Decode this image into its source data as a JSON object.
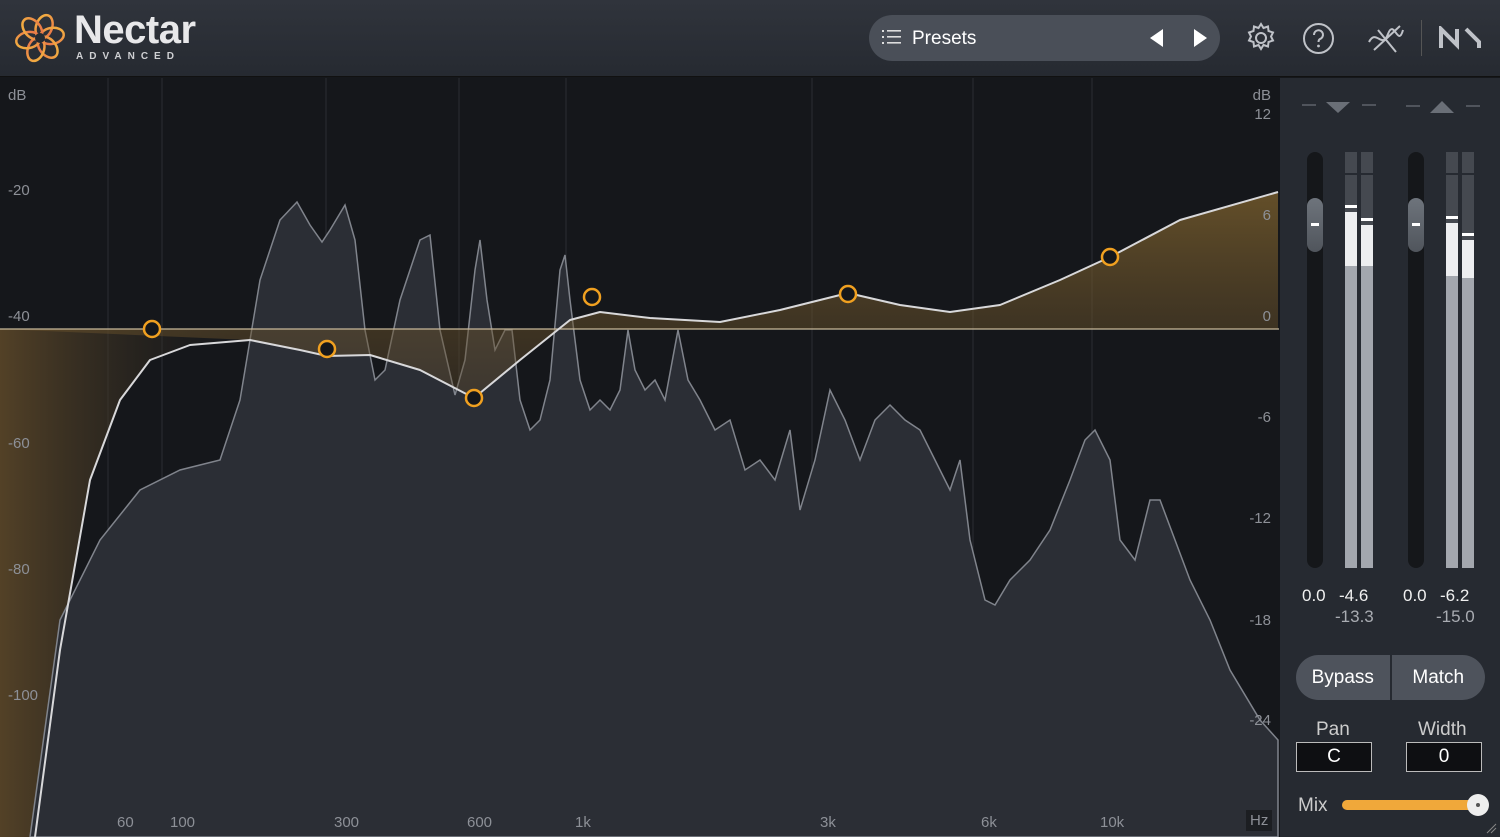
{
  "header": {
    "title": "Nectar",
    "subtitle": "ADVANCED",
    "presets_label": "Presets"
  },
  "display": {
    "left_axis_unit": "dB",
    "left_axis_ticks": [
      "-20",
      "-40",
      "-60",
      "-80",
      "-100"
    ],
    "right_axis_unit": "dB",
    "right_axis_ticks": [
      "12",
      "6",
      "0",
      "-6",
      "-12",
      "-18",
      "-24"
    ],
    "freq_ticks": [
      "60",
      "100",
      "300",
      "600",
      "1k",
      "3k",
      "6k",
      "10k"
    ],
    "freq_unit": "Hz"
  },
  "meters": {
    "input": {
      "gain": "0.0",
      "peak": "-4.6",
      "rms": "-13.3"
    },
    "output": {
      "gain": "0.0",
      "peak": "-6.2",
      "rms": "-15.0"
    }
  },
  "controls": {
    "bypass": "Bypass",
    "match": "Match",
    "pan_label": "Pan",
    "pan_value": "C",
    "width_label": "Width",
    "width_value": "0",
    "mix_label": "Mix",
    "mix_value": 1.0
  },
  "colors": {
    "accent": "#f0a020",
    "eq_line": "#d8d8da"
  }
}
